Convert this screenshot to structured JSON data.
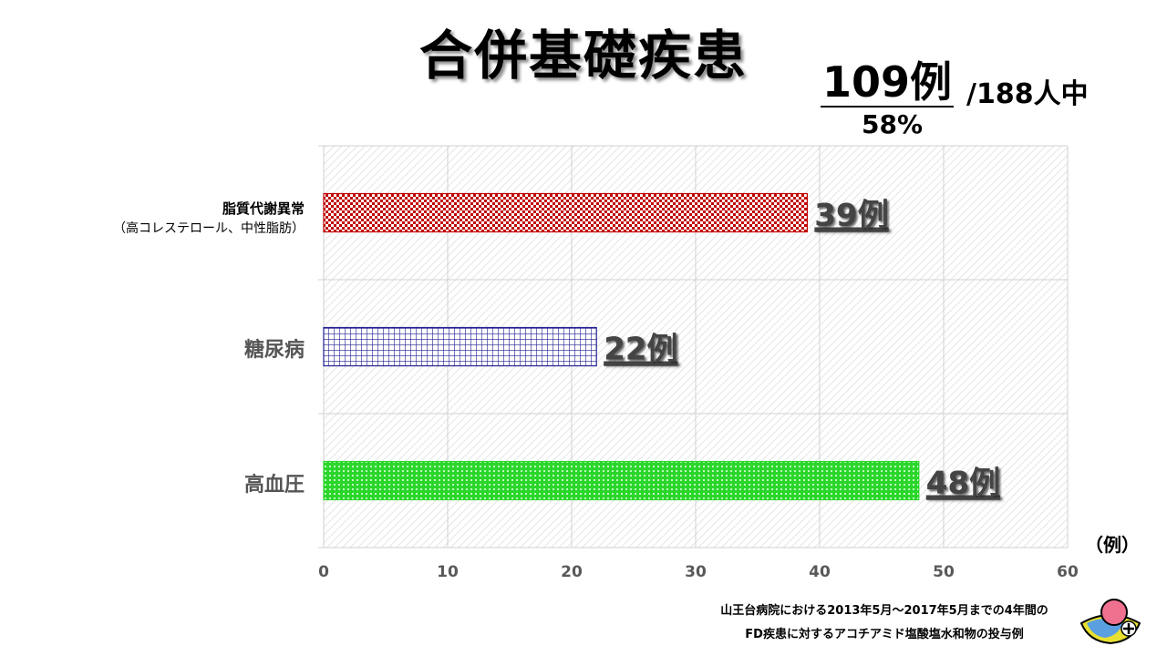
{
  "title": "合併基礎疾患",
  "summary": {
    "count": "109例",
    "total": "/188人中",
    "percent": "58%"
  },
  "unit_label": "（例）",
  "source_line1": "山王台病院における2013年5月～2017年5月までの4年間の",
  "source_line2": "FD疾患に対するアコチアミド塩酸塩水和物の投与例",
  "chart_data": {
    "type": "bar",
    "orientation": "horizontal",
    "categories": [
      {
        "label": "脂質代謝異常",
        "sublabel": "（高コレステロール、中性脂肪）"
      },
      {
        "label": "糖尿病",
        "sublabel": ""
      },
      {
        "label": "高血圧",
        "sublabel": ""
      }
    ],
    "values": [
      39,
      22,
      48
    ],
    "data_labels": [
      "39例",
      "22例",
      "48例"
    ],
    "xlim": [
      0,
      60
    ],
    "xticks": [
      0,
      10,
      20,
      30,
      40,
      50,
      60
    ],
    "grid": true,
    "colors": [
      "#c00000",
      "#1f1f8f",
      "#2bd62b"
    ]
  }
}
